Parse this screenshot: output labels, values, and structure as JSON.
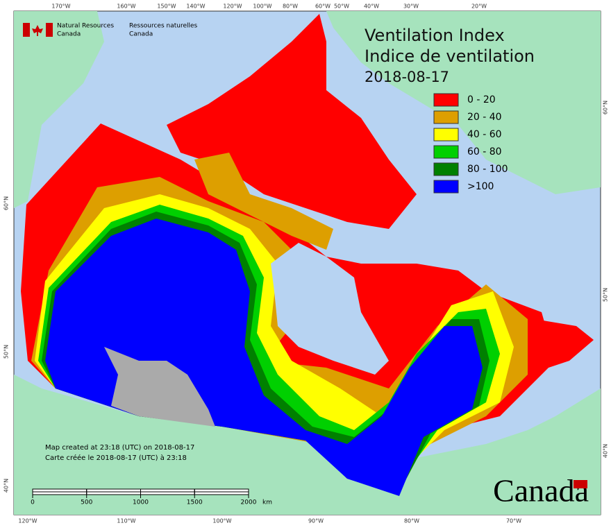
{
  "header": {
    "agency_en": [
      "Natural Resources",
      "Canada"
    ],
    "agency_fr": [
      "Ressources naturelles",
      "Canada"
    ]
  },
  "title": [
    "Ventilation Index",
    "Indice de ventilation",
    "2018-08-17"
  ],
  "legend": [
    {
      "label": "0 - 20",
      "color": "#ff0000"
    },
    {
      "label": "20 - 40",
      "color": "#dd9f00"
    },
    {
      "label": "40 - 60",
      "color": "#ffff00"
    },
    {
      "label": "60 - 80",
      "color": "#00d000"
    },
    {
      "label": "80 - 100",
      "color": "#008000"
    },
    {
      "label": ">100",
      "color": "#0000ff"
    }
  ],
  "top_longitudes": [
    "170°W",
    "160°W",
    "150°W",
    "140°W",
    "120°W",
    "100°W",
    "80°W",
    "60°W",
    "50°W",
    "40°W",
    "30°W",
    "20°W"
  ],
  "bottom_longitudes": [
    "120°W",
    "110°W",
    "100°W",
    "90°W",
    "80°W",
    "70°W"
  ],
  "left_latitudes": [
    "60°N",
    "50°N",
    "40°N"
  ],
  "right_latitudes": [
    "60°N",
    "50°N",
    "40°N"
  ],
  "credits": [
    "Map created at 23:18 (UTC) on 2018-08-17",
    "Carte créée le 2018-08-17 (UTC) à 23:18"
  ],
  "scale_bar": {
    "ticks": [
      0,
      500,
      1000,
      1500,
      2000
    ],
    "unit": "km"
  },
  "wordmark": "Canada"
}
